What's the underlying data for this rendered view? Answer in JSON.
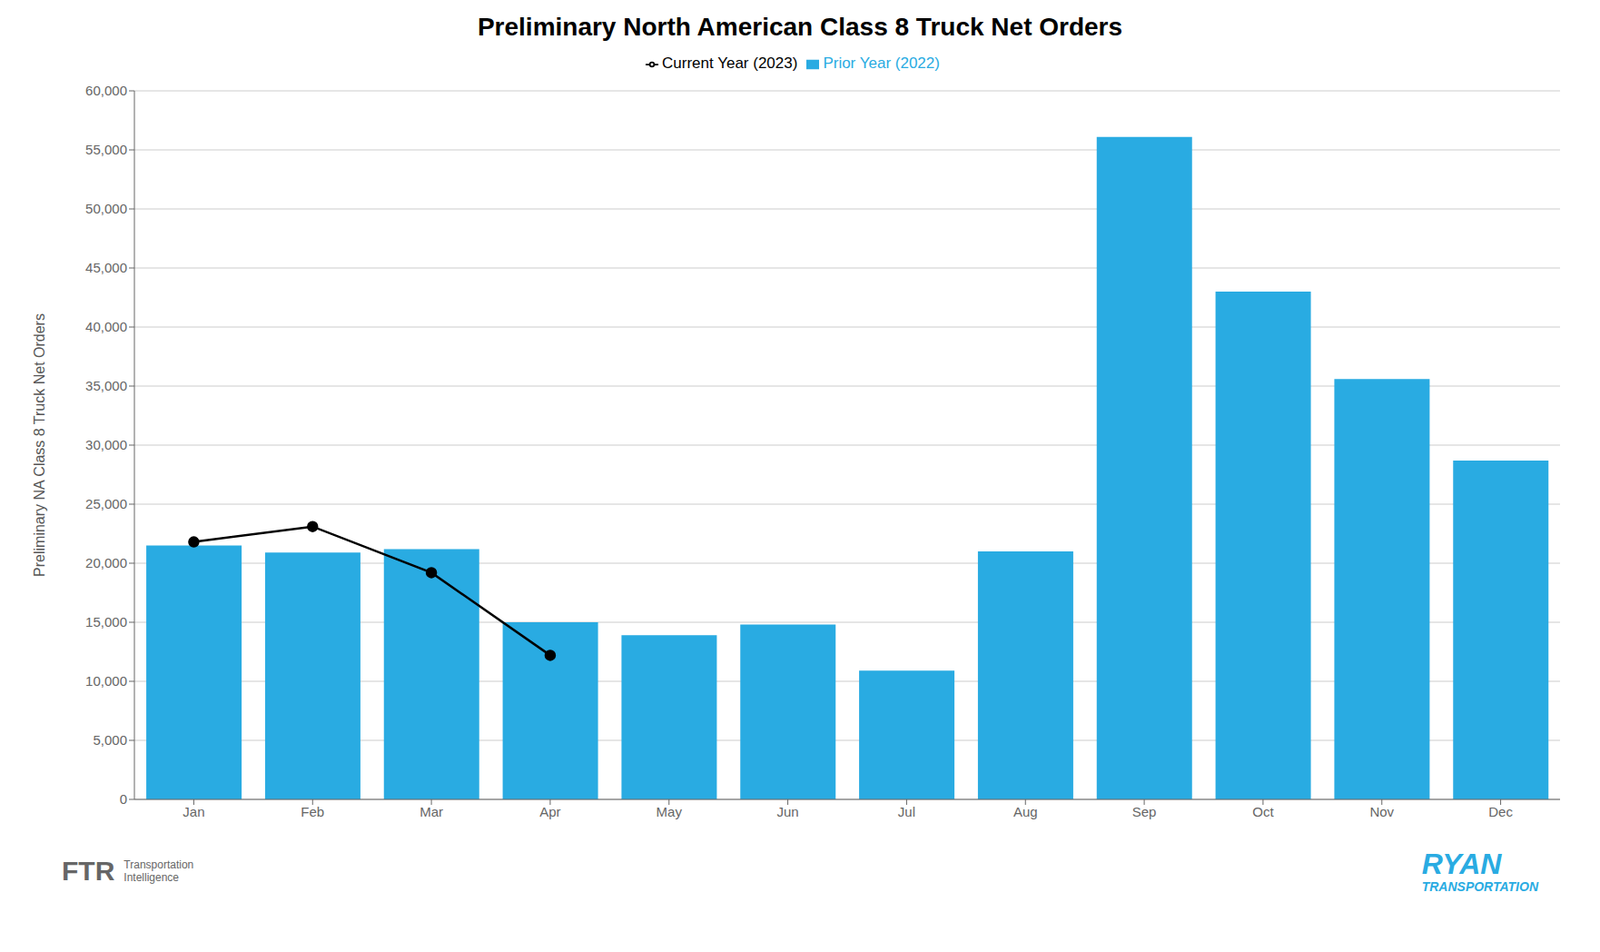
{
  "chart_data": {
    "type": "bar",
    "title": "Preliminary North American Class 8 Truck Net Orders",
    "y_label": "Preliminary NA Class 8 Truck Net Orders",
    "categories": [
      "Jan",
      "Feb",
      "Mar",
      "Apr",
      "May",
      "Jun",
      "Jul",
      "Aug",
      "Sep",
      "Oct",
      "Nov",
      "Dec"
    ],
    "series": [
      {
        "name": "Prior Year (2022)",
        "type": "bar",
        "color": "#29ABE2",
        "values": [
          21500,
          20900,
          21200,
          15000,
          13900,
          14800,
          10900,
          21000,
          56100,
          43000,
          35600,
          28700
        ]
      },
      {
        "name": "Current Year (2023)",
        "type": "line",
        "color": "#000000",
        "marker": "circle",
        "values": [
          21800,
          23100,
          19200,
          12200,
          null,
          null,
          null,
          null,
          null,
          null,
          null,
          null
        ]
      }
    ],
    "ylim": [
      0,
      60000
    ],
    "yticks": [
      0,
      {
        "value": 5000,
        "label": "5,000"
      },
      {
        "value": 10000,
        "label": "10,000"
      },
      {
        "value": 15000,
        "label": "15,000"
      },
      {
        "value": 20000,
        "label": "20,000"
      },
      {
        "value": 25000,
        "label": "25,000"
      },
      {
        "value": 30000,
        "label": "30,000"
      },
      {
        "value": 35000,
        "label": "35,000"
      },
      {
        "value": 40000,
        "label": "40,000"
      },
      {
        "value": 45000,
        "label": "45,000"
      },
      {
        "value": 50000,
        "label": "50,000"
      },
      {
        "value": 55000,
        "label": "55,000"
      },
      {
        "value": 60000,
        "label": "60,000"
      }
    ],
    "grid": true,
    "legend": "top",
    "annotations": [
      "FTR",
      "Transportation",
      "Intelligence",
      "RYAN",
      "TRANSPORTATION"
    ]
  }
}
